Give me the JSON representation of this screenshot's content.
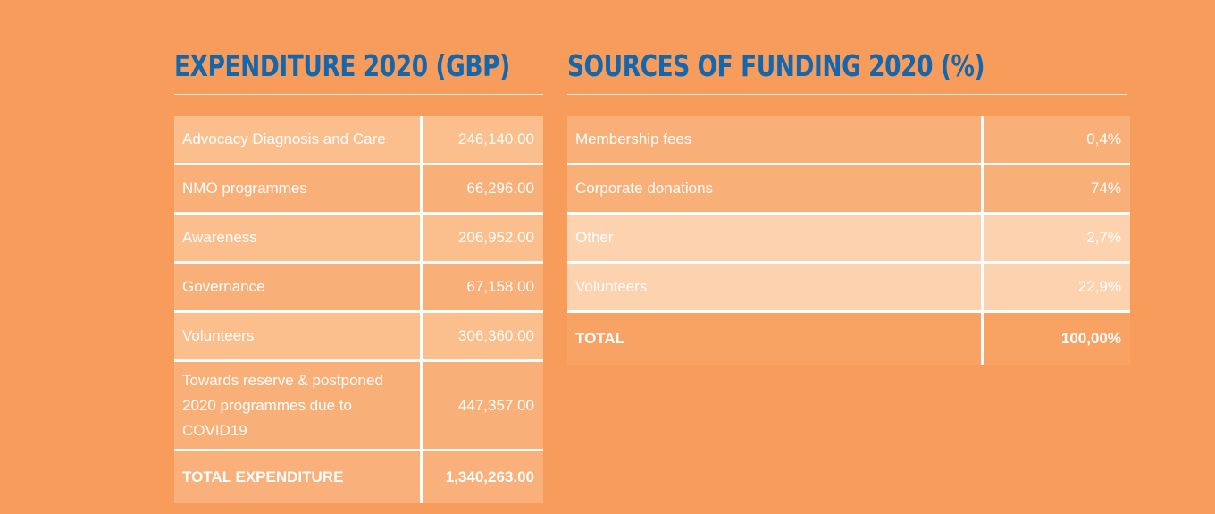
{
  "expenditure": {
    "title": "EXPENDITURE 2020 (GBP)",
    "rows": [
      {
        "label": "Advocacy Diagnosis and Care",
        "value": "246,140.00"
      },
      {
        "label": "NMO programmes",
        "value": "66,296.00"
      },
      {
        "label": "Awareness",
        "value": "206,952.00"
      },
      {
        "label": "Governance",
        "value": "67,158.00"
      },
      {
        "label": "Volunteers",
        "value": "306,360.00"
      },
      {
        "label": "Towards reserve & postponed 2020 programmes due to COVID19",
        "value": "447,357.00"
      }
    ],
    "total": {
      "label": "TOTAL EXPENDITURE",
      "value": "1,340,263.00"
    }
  },
  "funding": {
    "title": "SOURCES OF FUNDING 2020 (%)",
    "rows": [
      {
        "label": "Membership fees",
        "value": "0,4%"
      },
      {
        "label": "Corporate donations",
        "value": "74%"
      },
      {
        "label": "Other",
        "value": "2,7%"
      },
      {
        "label": "Volunteers",
        "value": "22,9%"
      }
    ],
    "total": {
      "label": "TOTAL",
      "value": "100,00%"
    }
  },
  "colors": {
    "background": "#f79c5a",
    "heading": "#1466ad",
    "row_light": "#fbbf8d",
    "row_mid": "#f9b078",
    "row_pale": "#fcd2af",
    "text": "#ffffff"
  }
}
